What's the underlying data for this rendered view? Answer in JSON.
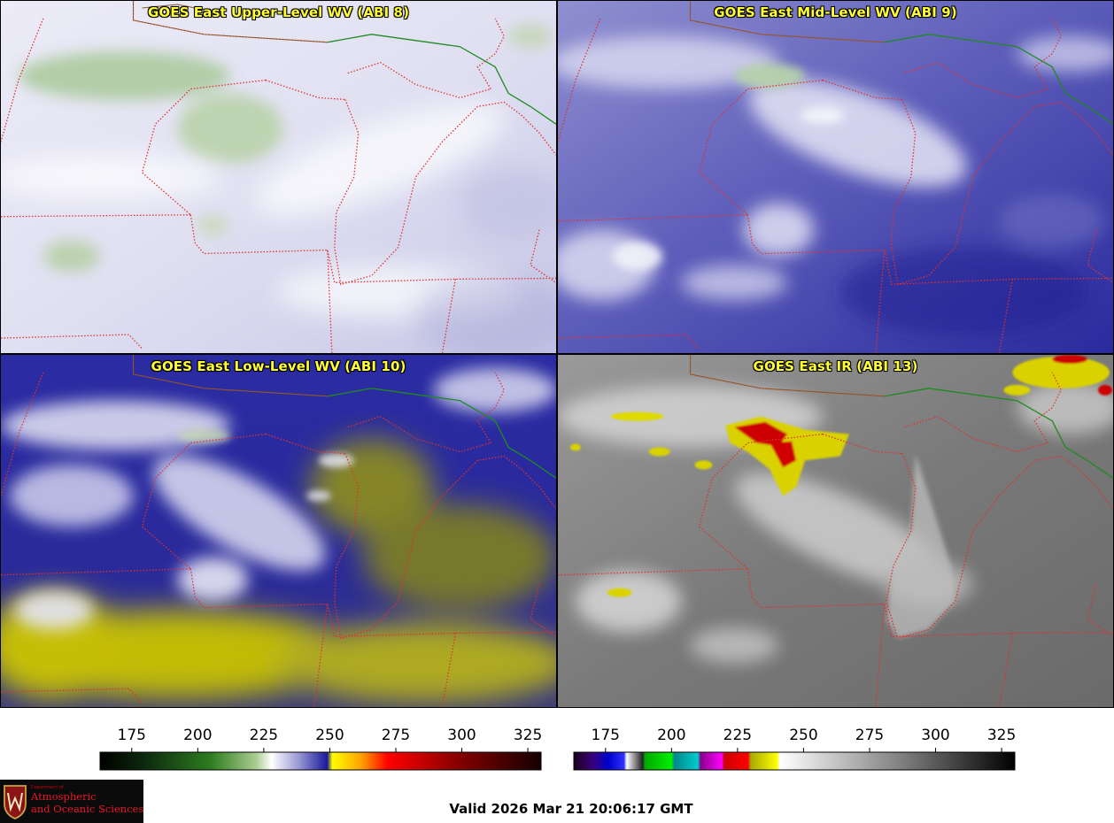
{
  "panels": [
    {
      "title": "GOES East Upper-Level WV (ABI 8)",
      "palette": "wv-upper"
    },
    {
      "title": "GOES East Mid-Level WV (ABI 9)",
      "palette": "wv-mid"
    },
    {
      "title": "GOES East Low-Level WV (ABI 10)",
      "palette": "wv-low"
    },
    {
      "title": "GOES East IR (ABI 13)",
      "palette": "ir"
    }
  ],
  "colorbars": {
    "left": {
      "ticks": [
        "175",
        "200",
        "225",
        "250",
        "275",
        "300",
        "325"
      ],
      "tick_values": [
        175,
        200,
        225,
        250,
        275,
        300,
        325
      ],
      "range": [
        163,
        330
      ],
      "stops": [
        {
          "t": 163,
          "c": "#000000"
        },
        {
          "t": 180,
          "c": "#0d2a0d"
        },
        {
          "t": 205,
          "c": "#2e7d1f"
        },
        {
          "t": 222,
          "c": "#a9cc8f"
        },
        {
          "t": 228,
          "c": "#ffffff"
        },
        {
          "t": 238,
          "c": "#9a9ad6"
        },
        {
          "t": 249,
          "c": "#1a1a9a"
        },
        {
          "t": 251,
          "c": "#ffff00"
        },
        {
          "t": 262,
          "c": "#ffa000"
        },
        {
          "t": 272,
          "c": "#ff0000"
        },
        {
          "t": 300,
          "c": "#800000"
        },
        {
          "t": 330,
          "c": "#150000"
        }
      ]
    },
    "right": {
      "ticks": [
        "175",
        "200",
        "225",
        "250",
        "275",
        "300",
        "325"
      ],
      "tick_values": [
        175,
        200,
        225,
        250,
        275,
        300,
        325
      ],
      "range": [
        163,
        330
      ],
      "stops": [
        {
          "t": 163,
          "c": "#1a001a"
        },
        {
          "t": 170,
          "c": "#3a007a"
        },
        {
          "t": 176,
          "c": "#0000cc"
        },
        {
          "t": 182,
          "c": "#3030ff"
        },
        {
          "t": 183,
          "c": "#ffffff"
        },
        {
          "t": 189,
          "c": "#222222"
        },
        {
          "t": 190,
          "c": "#00aa00"
        },
        {
          "t": 200,
          "c": "#00ee00"
        },
        {
          "t": 201,
          "c": "#008888"
        },
        {
          "t": 210,
          "c": "#00cccc"
        },
        {
          "t": 211,
          "c": "#880088"
        },
        {
          "t": 219,
          "c": "#ff00ff"
        },
        {
          "t": 220,
          "c": "#cc0000"
        },
        {
          "t": 229,
          "c": "#ff0000"
        },
        {
          "t": 230,
          "c": "#aaaa00"
        },
        {
          "t": 240,
          "c": "#ffff00"
        },
        {
          "t": 241,
          "c": "#ffffff"
        },
        {
          "t": 290,
          "c": "#777777"
        },
        {
          "t": 330,
          "c": "#000000"
        }
      ]
    }
  },
  "valid_text": "Valid 2026 Mar 21 20:06:17 GMT",
  "logo": {
    "dept": "Department of",
    "line1": "Atmospheric",
    "line2": "and Oceanic Sciences"
  },
  "colors": {
    "state_borders": "#e03030",
    "intl_border": "#1f8a1f",
    "coast": "#8a5a2a",
    "title_text": "#ffff33"
  }
}
